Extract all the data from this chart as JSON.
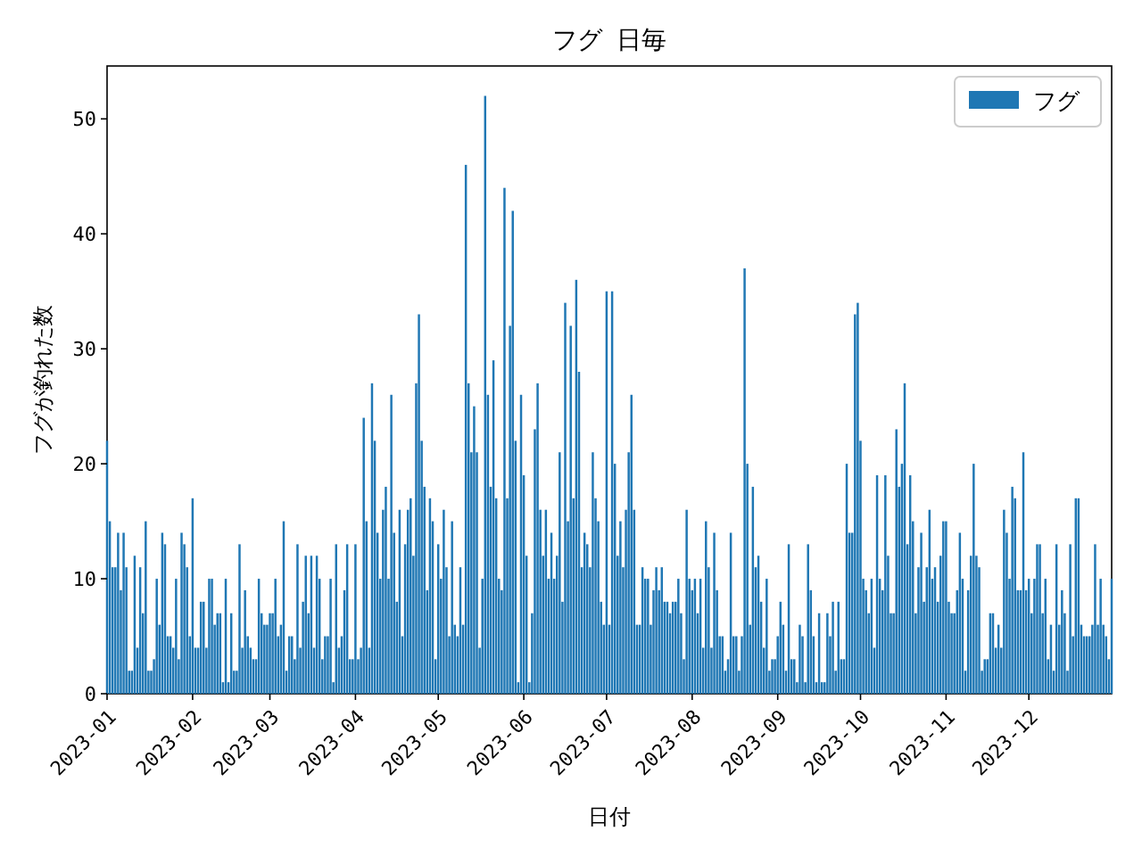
{
  "chart_data": {
    "type": "bar",
    "title": "フグ 日毎",
    "xlabel": "日付",
    "ylabel": "フグが釣れた数",
    "legend": "top right",
    "grid": false,
    "xlim": [
      "2023-01-01",
      "2023-12-31"
    ],
    "xticks": [
      {
        "value": "2023-01-01",
        "label": "2023-01"
      },
      {
        "value": "2023-02-01",
        "label": "2023-02"
      },
      {
        "value": "2023-03-01",
        "label": "2023-03"
      },
      {
        "value": "2023-04-01",
        "label": "2023-04"
      },
      {
        "value": "2023-05-01",
        "label": "2023-05"
      },
      {
        "value": "2023-06-01",
        "label": "2023-06"
      },
      {
        "value": "2023-07-01",
        "label": "2023-07"
      },
      {
        "value": "2023-08-01",
        "label": "2023-08"
      },
      {
        "value": "2023-09-01",
        "label": "2023-09"
      },
      {
        "value": "2023-10-01",
        "label": "2023-10"
      },
      {
        "value": "2023-11-01",
        "label": "2023-11"
      },
      {
        "value": "2023-12-01",
        "label": "2023-12"
      }
    ],
    "ylim": [
      0,
      54.6
    ],
    "yticks": [
      0,
      10,
      20,
      30,
      40,
      50
    ],
    "x": [
      "2023-01-01",
      "2023-01-02",
      "2023-01-03",
      "2023-01-04",
      "2023-01-05",
      "2023-01-06",
      "2023-01-07",
      "2023-01-08",
      "2023-01-09",
      "2023-01-10",
      "2023-01-11",
      "2023-01-12",
      "2023-01-13",
      "2023-01-14",
      "2023-01-15",
      "2023-01-16",
      "2023-01-17",
      "2023-01-18",
      "2023-01-19",
      "2023-01-20",
      "2023-01-21",
      "2023-01-22",
      "2023-01-23",
      "2023-01-24",
      "2023-01-25",
      "2023-01-26",
      "2023-01-27",
      "2023-01-28",
      "2023-01-29",
      "2023-01-30",
      "2023-01-31",
      "2023-02-01",
      "2023-02-02",
      "2023-02-03",
      "2023-02-04",
      "2023-02-05",
      "2023-02-06",
      "2023-02-07",
      "2023-02-08",
      "2023-02-09",
      "2023-02-10",
      "2023-02-11",
      "2023-02-12",
      "2023-02-13",
      "2023-02-14",
      "2023-02-15",
      "2023-02-16",
      "2023-02-17",
      "2023-02-18",
      "2023-02-19",
      "2023-02-20",
      "2023-02-21",
      "2023-02-22",
      "2023-02-23",
      "2023-02-24",
      "2023-02-25",
      "2023-02-26",
      "2023-02-27",
      "2023-02-28",
      "2023-03-01",
      "2023-03-02",
      "2023-03-03",
      "2023-03-04",
      "2023-03-05",
      "2023-03-06",
      "2023-03-07",
      "2023-03-08",
      "2023-03-09",
      "2023-03-10",
      "2023-03-11",
      "2023-03-12",
      "2023-03-13",
      "2023-03-14",
      "2023-03-15",
      "2023-03-16",
      "2023-03-17",
      "2023-03-18",
      "2023-03-19",
      "2023-03-20",
      "2023-03-21",
      "2023-03-22",
      "2023-03-23",
      "2023-03-24",
      "2023-03-25",
      "2023-03-26",
      "2023-03-27",
      "2023-03-28",
      "2023-03-29",
      "2023-03-30",
      "2023-03-31",
      "2023-04-01",
      "2023-04-02",
      "2023-04-03",
      "2023-04-04",
      "2023-04-05",
      "2023-04-06",
      "2023-04-07",
      "2023-04-08",
      "2023-04-09",
      "2023-04-10",
      "2023-04-11",
      "2023-04-12",
      "2023-04-13",
      "2023-04-14",
      "2023-04-15",
      "2023-04-16",
      "2023-04-17",
      "2023-04-18",
      "2023-04-19",
      "2023-04-20",
      "2023-04-21",
      "2023-04-22",
      "2023-04-23",
      "2023-04-24",
      "2023-04-25",
      "2023-04-26",
      "2023-04-27",
      "2023-04-28",
      "2023-04-29",
      "2023-04-30",
      "2023-05-01",
      "2023-05-02",
      "2023-05-03",
      "2023-05-04",
      "2023-05-05",
      "2023-05-06",
      "2023-05-07",
      "2023-05-08",
      "2023-05-09",
      "2023-05-10",
      "2023-05-11",
      "2023-05-12",
      "2023-05-13",
      "2023-05-14",
      "2023-05-15",
      "2023-05-16",
      "2023-05-17",
      "2023-05-18",
      "2023-05-19",
      "2023-05-20",
      "2023-05-21",
      "2023-05-22",
      "2023-05-23",
      "2023-05-24",
      "2023-05-25",
      "2023-05-26",
      "2023-05-27",
      "2023-05-28",
      "2023-05-29",
      "2023-05-30",
      "2023-05-31",
      "2023-06-01",
      "2023-06-02",
      "2023-06-03",
      "2023-06-04",
      "2023-06-05",
      "2023-06-06",
      "2023-06-07",
      "2023-06-08",
      "2023-06-09",
      "2023-06-10",
      "2023-06-11",
      "2023-06-12",
      "2023-06-13",
      "2023-06-14",
      "2023-06-15",
      "2023-06-16",
      "2023-06-17",
      "2023-06-18",
      "2023-06-19",
      "2023-06-20",
      "2023-06-21",
      "2023-06-22",
      "2023-06-23",
      "2023-06-24",
      "2023-06-25",
      "2023-06-26",
      "2023-06-27",
      "2023-06-28",
      "2023-06-29",
      "2023-06-30",
      "2023-07-01",
      "2023-07-02",
      "2023-07-03",
      "2023-07-04",
      "2023-07-05",
      "2023-07-06",
      "2023-07-07",
      "2023-07-08",
      "2023-07-09",
      "2023-07-10",
      "2023-07-11",
      "2023-07-12",
      "2023-07-13",
      "2023-07-14",
      "2023-07-15",
      "2023-07-16",
      "2023-07-17",
      "2023-07-18",
      "2023-07-19",
      "2023-07-20",
      "2023-07-21",
      "2023-07-22",
      "2023-07-23",
      "2023-07-24",
      "2023-07-25",
      "2023-07-26",
      "2023-07-27",
      "2023-07-28",
      "2023-07-29",
      "2023-07-30",
      "2023-07-31",
      "2023-08-01",
      "2023-08-02",
      "2023-08-03",
      "2023-08-04",
      "2023-08-05",
      "2023-08-06",
      "2023-08-07",
      "2023-08-08",
      "2023-08-09",
      "2023-08-10",
      "2023-08-11",
      "2023-08-12",
      "2023-08-13",
      "2023-08-14",
      "2023-08-15",
      "2023-08-16",
      "2023-08-17",
      "2023-08-18",
      "2023-08-19",
      "2023-08-20",
      "2023-08-21",
      "2023-08-22",
      "2023-08-23",
      "2023-08-24",
      "2023-08-25",
      "2023-08-26",
      "2023-08-27",
      "2023-08-28",
      "2023-08-29",
      "2023-08-30",
      "2023-08-31",
      "2023-09-01",
      "2023-09-02",
      "2023-09-03",
      "2023-09-04",
      "2023-09-05",
      "2023-09-06",
      "2023-09-07",
      "2023-09-08",
      "2023-09-09",
      "2023-09-10",
      "2023-09-11",
      "2023-09-12",
      "2023-09-13",
      "2023-09-14",
      "2023-09-15",
      "2023-09-16",
      "2023-09-17",
      "2023-09-18",
      "2023-09-19",
      "2023-09-20",
      "2023-09-21",
      "2023-09-22",
      "2023-09-23",
      "2023-09-24",
      "2023-09-25",
      "2023-09-26",
      "2023-09-27",
      "2023-09-28",
      "2023-09-29",
      "2023-09-30",
      "2023-10-01",
      "2023-10-02",
      "2023-10-03",
      "2023-10-04",
      "2023-10-05",
      "2023-10-06",
      "2023-10-07",
      "2023-10-08",
      "2023-10-09",
      "2023-10-10",
      "2023-10-11",
      "2023-10-12",
      "2023-10-13",
      "2023-10-14",
      "2023-10-15",
      "2023-10-16",
      "2023-10-17",
      "2023-10-18",
      "2023-10-19",
      "2023-10-20",
      "2023-10-21",
      "2023-10-22",
      "2023-10-23",
      "2023-10-24",
      "2023-10-25",
      "2023-10-26",
      "2023-10-27",
      "2023-10-28",
      "2023-10-29",
      "2023-10-30",
      "2023-10-31",
      "2023-11-01",
      "2023-11-02",
      "2023-11-03",
      "2023-11-04",
      "2023-11-05",
      "2023-11-06",
      "2023-11-07",
      "2023-11-08",
      "2023-11-09",
      "2023-11-10",
      "2023-11-11",
      "2023-11-12",
      "2023-11-13",
      "2023-11-14",
      "2023-11-15",
      "2023-11-16",
      "2023-11-17",
      "2023-11-18",
      "2023-11-19",
      "2023-11-20",
      "2023-11-21",
      "2023-11-22",
      "2023-11-23",
      "2023-11-24",
      "2023-11-25",
      "2023-11-26",
      "2023-11-27",
      "2023-11-28",
      "2023-11-29",
      "2023-11-30",
      "2023-12-01",
      "2023-12-02",
      "2023-12-03",
      "2023-12-04",
      "2023-12-05",
      "2023-12-06",
      "2023-12-07",
      "2023-12-08",
      "2023-12-09",
      "2023-12-10",
      "2023-12-11",
      "2023-12-12",
      "2023-12-13",
      "2023-12-14",
      "2023-12-15",
      "2023-12-16",
      "2023-12-17",
      "2023-12-18",
      "2023-12-19",
      "2023-12-20",
      "2023-12-21",
      "2023-12-22",
      "2023-12-23",
      "2023-12-24",
      "2023-12-25",
      "2023-12-26",
      "2023-12-27",
      "2023-12-28",
      "2023-12-29",
      "2023-12-30",
      "2023-12-31"
    ],
    "series": [
      {
        "name": "フグ",
        "color": "#1f77b4",
        "values": [
          22,
          15,
          11,
          11,
          14,
          9,
          14,
          11,
          2,
          2,
          12,
          4,
          11,
          7,
          15,
          2,
          2,
          3,
          10,
          6,
          14,
          13,
          5,
          5,
          4,
          10,
          3,
          14,
          13,
          11,
          5,
          17,
          4,
          4,
          8,
          8,
          4,
          10,
          10,
          6,
          7,
          7,
          1,
          10,
          1,
          7,
          2,
          2,
          13,
          4,
          9,
          5,
          4,
          3,
          3,
          10,
          7,
          6,
          6,
          7,
          7,
          10,
          5,
          6,
          15,
          2,
          5,
          5,
          3,
          13,
          4,
          8,
          12,
          7,
          12,
          4,
          12,
          10,
          3,
          5,
          5,
          10,
          1,
          13,
          4,
          5,
          9,
          13,
          3,
          3,
          13,
          3,
          4,
          24,
          15,
          4,
          27,
          22,
          14,
          10,
          16,
          18,
          10,
          26,
          14,
          8,
          16,
          5,
          13,
          16,
          17,
          12,
          27,
          33,
          22,
          18,
          9,
          17,
          15,
          3,
          13,
          10,
          16,
          11,
          5,
          15,
          6,
          5,
          11,
          6,
          46,
          27,
          21,
          25,
          21,
          4,
          10,
          52,
          26,
          18,
          29,
          17,
          10,
          9,
          44,
          17,
          32,
          42,
          22,
          1,
          26,
          19,
          12,
          1,
          7,
          23,
          27,
          16,
          12,
          16,
          10,
          14,
          10,
          12,
          21,
          8,
          34,
          15,
          32,
          17,
          36,
          28,
          11,
          14,
          13,
          11,
          21,
          17,
          15,
          8,
          6,
          35,
          6,
          35,
          20,
          12,
          15,
          11,
          16,
          21,
          26,
          16,
          6,
          6,
          11,
          10,
          10,
          6,
          9,
          11,
          9,
          11,
          8,
          8,
          7,
          8,
          8,
          10,
          7,
          3,
          16,
          10,
          9,
          10,
          7,
          10,
          4,
          15,
          11,
          4,
          14,
          9,
          5,
          5,
          2,
          3,
          14,
          5,
          5,
          2,
          5,
          37,
          20,
          6,
          18,
          11,
          12,
          8,
          4,
          10,
          2,
          3,
          3,
          5,
          8,
          6,
          2,
          13,
          3,
          3,
          1,
          6,
          5,
          1,
          13,
          9,
          5,
          1,
          7,
          1,
          1,
          7,
          5,
          8,
          2,
          8,
          3,
          3,
          20,
          14,
          14,
          33,
          34,
          22,
          10,
          9,
          7,
          10,
          4,
          19,
          10,
          9,
          19,
          12,
          7,
          7,
          23,
          18,
          20,
          27,
          13,
          19,
          15,
          7,
          11,
          14,
          8,
          11,
          16,
          10,
          11,
          8,
          12,
          15,
          15,
          8,
          7,
          7,
          9,
          14,
          10,
          2,
          9,
          12,
          20,
          12,
          11,
          2,
          3,
          3,
          7,
          7,
          4,
          6,
          4,
          16,
          14,
          10,
          18,
          17,
          9,
          9,
          21,
          9,
          10,
          7,
          10,
          13,
          13,
          7,
          10,
          3,
          6,
          2,
          13,
          6,
          9,
          7,
          2,
          13,
          5,
          17,
          17,
          6,
          5,
          5,
          5,
          6,
          13,
          6,
          10,
          6,
          5,
          3,
          10
        ]
      }
    ]
  }
}
